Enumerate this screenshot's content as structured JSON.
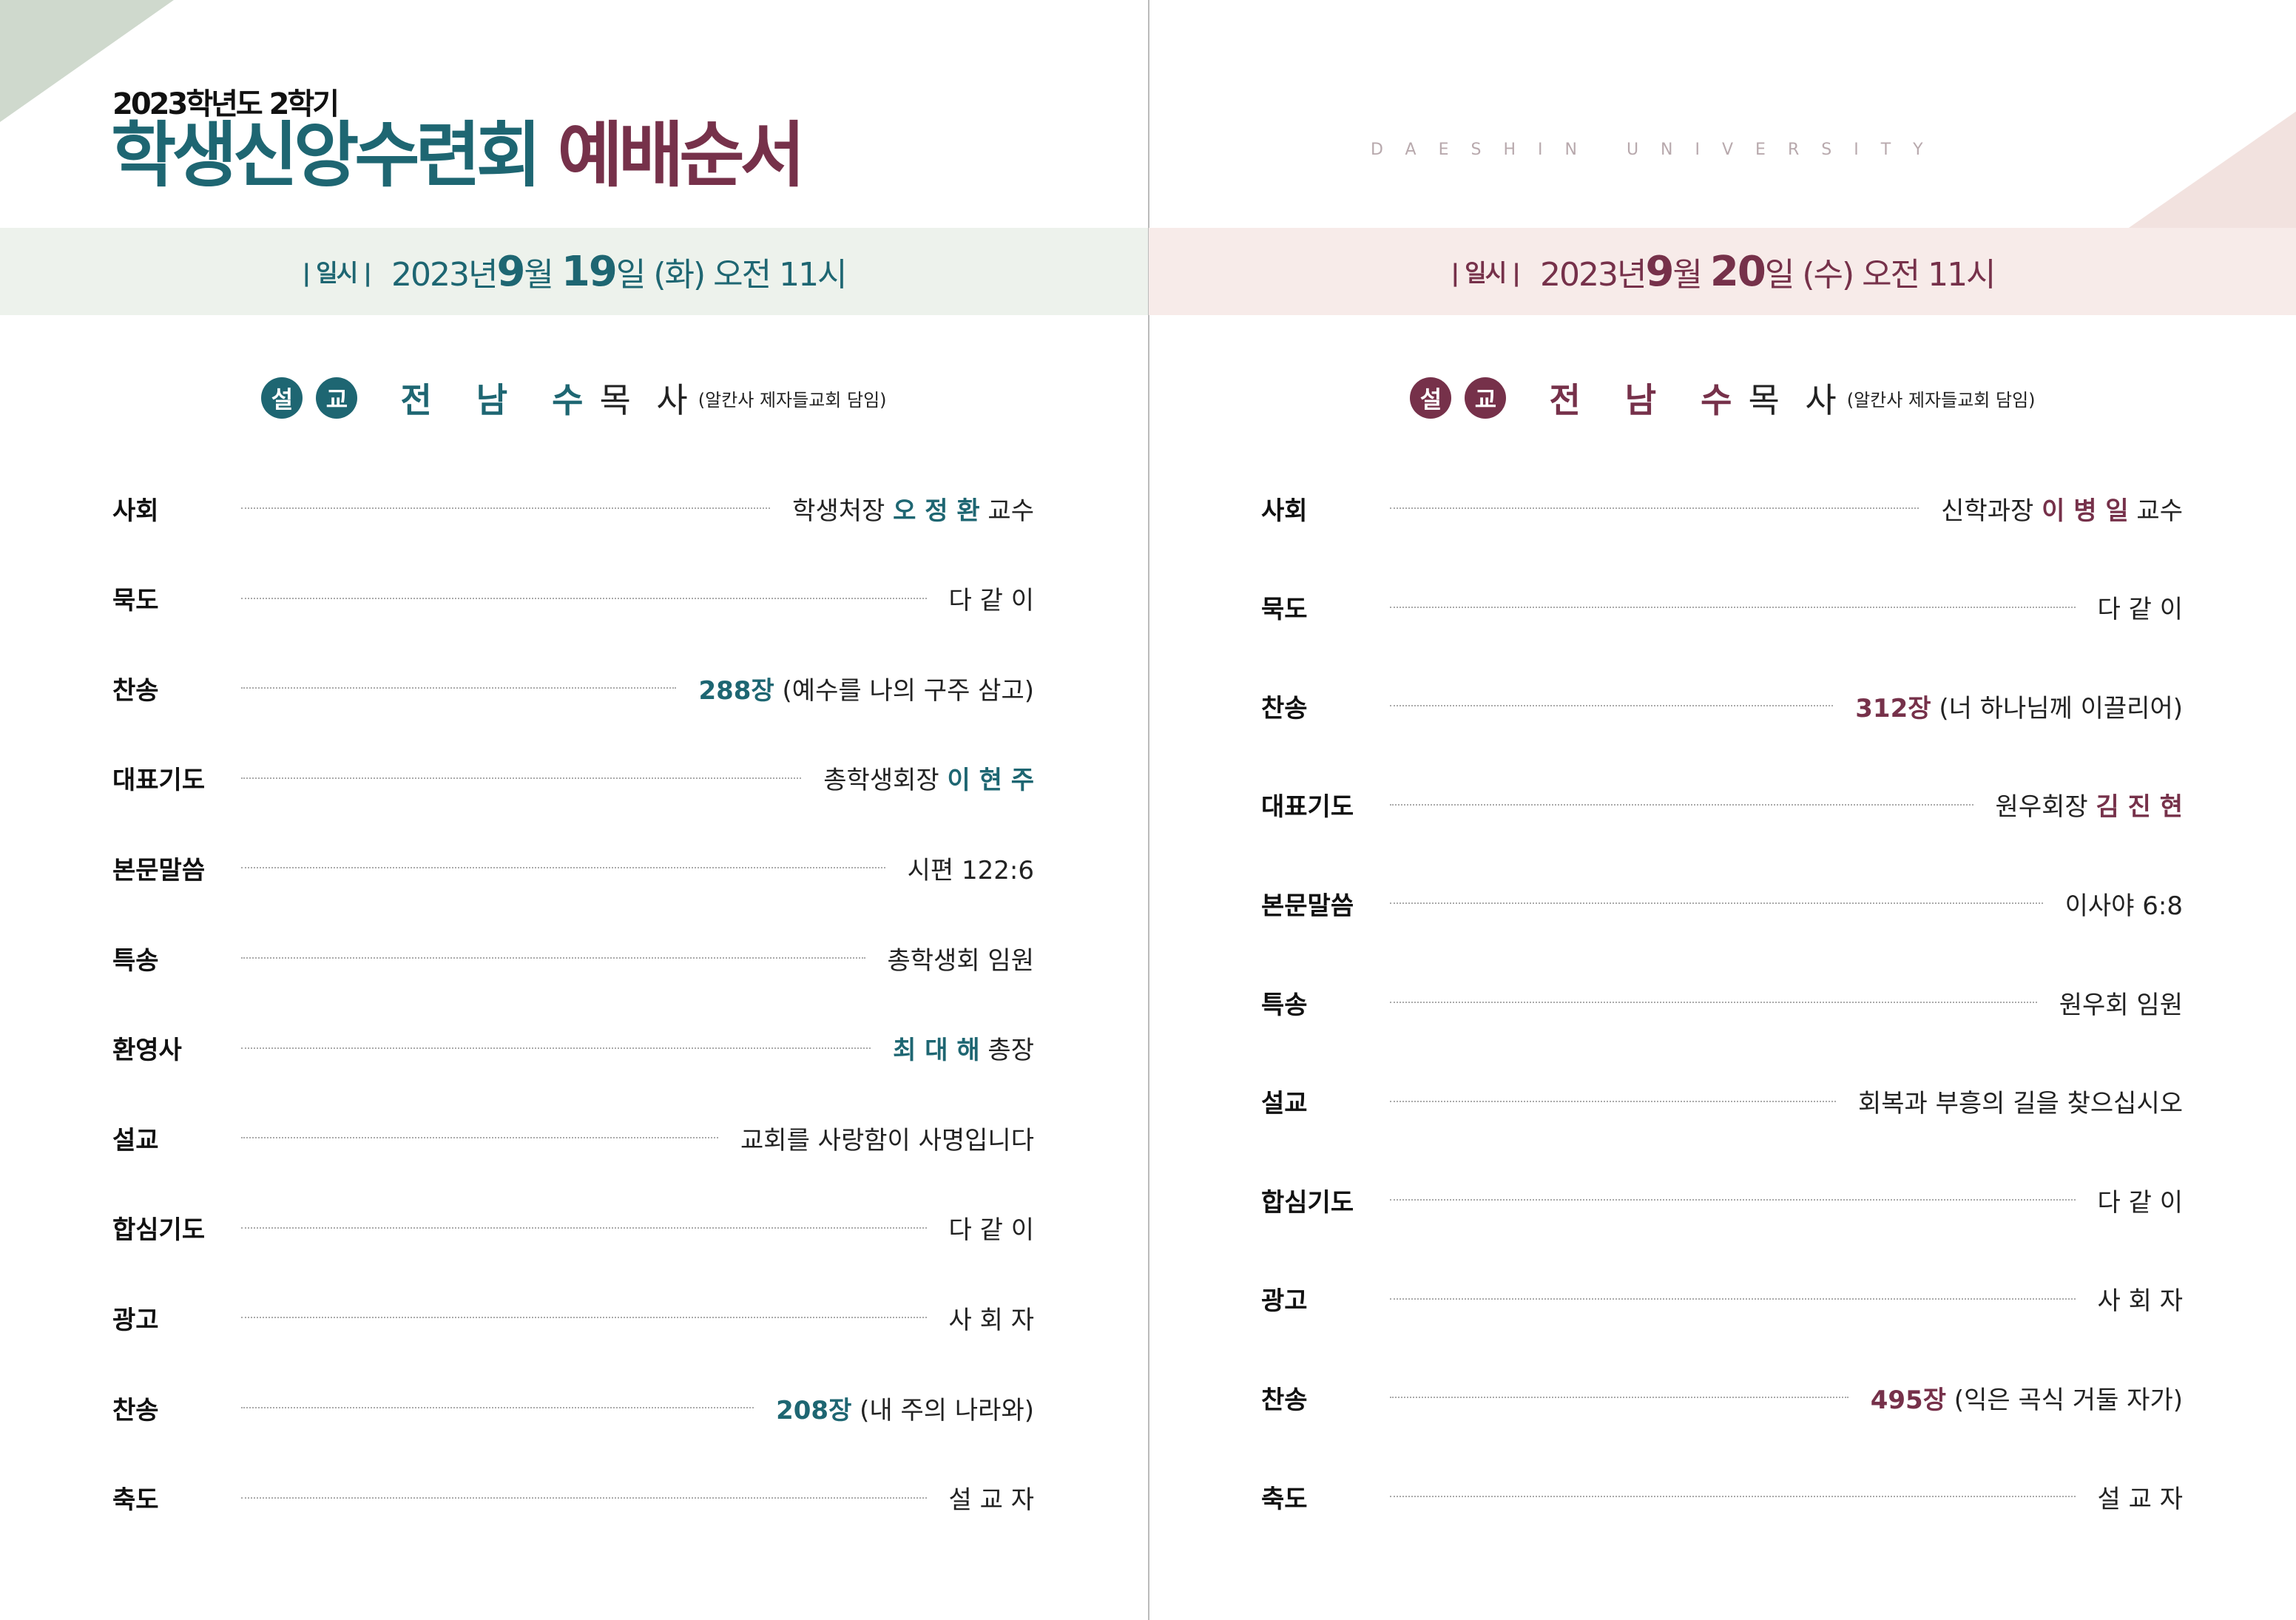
{
  "colors": {
    "left_accent": "#1e6672",
    "right_accent": "#76314a",
    "left_band": "#edf2ec",
    "right_band": "#f7ebe9"
  },
  "header": {
    "subtitle": "2023학년도 2학기",
    "title_a": "학생신앙수련회",
    "title_b": "예배순서",
    "brand": "DAESHIN UNIVERSITY"
  },
  "day1": {
    "date": {
      "label": "| 일시 |",
      "pre": "2023년",
      "month": "9",
      "m_unit": "월",
      "day": "19",
      "d_unit": "일",
      "rest": "(화) 오전 11시"
    },
    "sermon": {
      "badge1": "설",
      "badge2": "교",
      "name": "전 남 수",
      "title": "목 사",
      "affil": "(알칸사 제자들교회 담임)"
    },
    "rows": [
      {
        "label": "사회",
        "parts": [
          {
            "t": "학생처장 "
          },
          {
            "t": "오 정 환",
            "h": true
          },
          {
            "t": " 교수"
          }
        ]
      },
      {
        "label": "묵도",
        "parts": [
          {
            "t": "다 같 이"
          }
        ]
      },
      {
        "label": "찬송",
        "parts": [
          {
            "t": "288장",
            "h": true
          },
          {
            "t": " (예수를 나의 구주 삼고)"
          }
        ]
      },
      {
        "label": "대표기도",
        "parts": [
          {
            "t": "총학생회장 "
          },
          {
            "t": "이 현 주",
            "h": true
          }
        ]
      },
      {
        "label": "본문말씀",
        "parts": [
          {
            "t": "시편 122:6"
          }
        ]
      },
      {
        "label": "특송",
        "parts": [
          {
            "t": "총학생회 임원"
          }
        ]
      },
      {
        "label": "환영사",
        "parts": [
          {
            "t": "최 대 해",
            "h": true
          },
          {
            "t": " 총장"
          }
        ]
      },
      {
        "label": "설교",
        "parts": [
          {
            "t": "교회를 사랑함이 사명입니다"
          }
        ]
      },
      {
        "label": "합심기도",
        "parts": [
          {
            "t": "다 같 이"
          }
        ]
      },
      {
        "label": "광고",
        "parts": [
          {
            "t": "사 회 자"
          }
        ]
      },
      {
        "label": "찬송",
        "parts": [
          {
            "t": "208장",
            "h": true
          },
          {
            "t": " (내 주의 나라와)"
          }
        ]
      },
      {
        "label": "축도",
        "parts": [
          {
            "t": "설 교 자"
          }
        ]
      }
    ]
  },
  "day2": {
    "date": {
      "label": "| 일시 |",
      "pre": "2023년",
      "month": "9",
      "m_unit": "월",
      "day": "20",
      "d_unit": "일",
      "rest": "(수) 오전 11시"
    },
    "sermon": {
      "badge1": "설",
      "badge2": "교",
      "name": "전 남 수",
      "title": "목 사",
      "affil": "(알칸사 제자들교회 담임)"
    },
    "rows": [
      {
        "label": "사회",
        "parts": [
          {
            "t": "신학과장 "
          },
          {
            "t": "이 병 일",
            "h": true
          },
          {
            "t": " 교수"
          }
        ]
      },
      {
        "label": "묵도",
        "parts": [
          {
            "t": "다 같 이"
          }
        ]
      },
      {
        "label": "찬송",
        "parts": [
          {
            "t": "312장",
            "h": true
          },
          {
            "t": " (너 하나님께 이끌리어)"
          }
        ]
      },
      {
        "label": "대표기도",
        "parts": [
          {
            "t": "원우회장 "
          },
          {
            "t": "김 진 현",
            "h": true
          }
        ]
      },
      {
        "label": "본문말씀",
        "parts": [
          {
            "t": "이사야 6:8"
          }
        ]
      },
      {
        "label": "특송",
        "parts": [
          {
            "t": "원우회 임원"
          }
        ]
      },
      {
        "label": "설교",
        "parts": [
          {
            "t": "회복과 부흥의 길을 찾으십시오"
          }
        ]
      },
      {
        "label": "합심기도",
        "parts": [
          {
            "t": "다 같 이"
          }
        ]
      },
      {
        "label": "광고",
        "parts": [
          {
            "t": "사 회 자"
          }
        ]
      },
      {
        "label": "찬송",
        "parts": [
          {
            "t": "495장",
            "h": true
          },
          {
            "t": " (익은 곡식 거둘 자가)"
          }
        ]
      },
      {
        "label": "축도",
        "parts": [
          {
            "t": "설 교 자"
          }
        ]
      }
    ]
  }
}
